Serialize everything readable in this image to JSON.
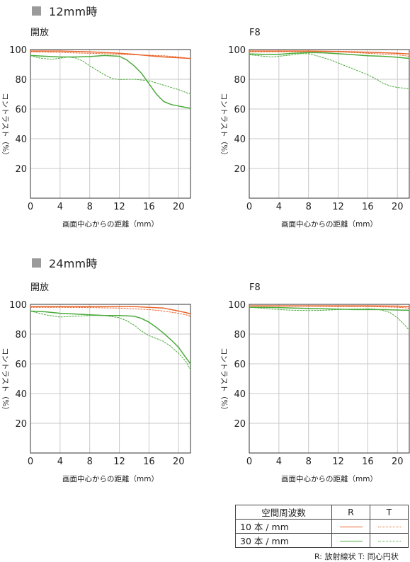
{
  "sections": [
    {
      "title": "12mm時"
    },
    {
      "title": "24mm時"
    }
  ],
  "colors": {
    "ten": "#e8642a",
    "thirty": "#4aaa3a",
    "grid": "#c8c8c8",
    "frame": "#333333"
  },
  "chart_data": [
    {
      "type": "line",
      "subtitle": "開放",
      "xlabel": "画面中心からの距離（mm）",
      "ylabel": "コントラスト（%）",
      "xlim": [
        0,
        21.6
      ],
      "ylim": [
        0,
        100
      ],
      "xticks": [
        0,
        4,
        8,
        12,
        16,
        20
      ],
      "yticks": [
        20,
        40,
        60,
        80,
        100
      ],
      "series": [
        {
          "kind": "10R",
          "x": [
            0,
            4,
            8,
            12,
            14,
            16,
            18,
            20,
            21.6
          ],
          "y": [
            99,
            99,
            98.5,
            97.5,
            96.8,
            95.8,
            95,
            94.5,
            94
          ]
        },
        {
          "kind": "10T",
          "x": [
            0,
            4,
            8,
            12,
            16,
            18,
            20,
            21.6
          ],
          "y": [
            98.5,
            98,
            97.5,
            96.8,
            96.2,
            95.8,
            95,
            94
          ]
        },
        {
          "kind": "30R",
          "x": [
            0,
            2,
            4,
            6,
            8,
            10,
            12,
            13,
            14,
            15,
            16,
            17,
            18,
            19,
            20,
            21,
            21.6
          ],
          "y": [
            96,
            95.5,
            95,
            95,
            95.3,
            96,
            95.5,
            93,
            89,
            84,
            77,
            70,
            65,
            63,
            62,
            61,
            60.5
          ]
        },
        {
          "kind": "30T",
          "x": [
            0,
            1,
            2,
            3,
            4,
            5,
            6,
            7,
            8,
            9,
            10,
            11,
            12,
            14,
            16,
            18,
            20,
            21.6
          ],
          "y": [
            96,
            94.5,
            93.8,
            93.5,
            94.2,
            95,
            94.5,
            92.5,
            89,
            86,
            83,
            80.5,
            79.8,
            80,
            79,
            76,
            73,
            70
          ]
        }
      ]
    },
    {
      "type": "line",
      "subtitle": "F8",
      "xlabel": "画面中心からの距離（mm）",
      "ylabel": "コントラスト（%）",
      "xlim": [
        0,
        21.6
      ],
      "ylim": [
        0,
        100
      ],
      "xticks": [
        0,
        4,
        8,
        12,
        16,
        20
      ],
      "yticks": [
        20,
        40,
        60,
        80,
        100
      ],
      "series": [
        {
          "kind": "10R",
          "x": [
            0,
            4,
            8,
            12,
            16,
            20,
            21.6
          ],
          "y": [
            99,
            99,
            99,
            98.7,
            98.2,
            97.5,
            97
          ]
        },
        {
          "kind": "10T",
          "x": [
            0,
            4,
            8,
            12,
            16,
            20,
            21.6
          ],
          "y": [
            98.5,
            98.5,
            98.6,
            98.5,
            97.5,
            96.5,
            95.5
          ]
        },
        {
          "kind": "30R",
          "x": [
            0,
            2,
            4,
            6,
            8,
            10,
            12,
            14,
            16,
            18,
            20,
            21.6
          ],
          "y": [
            97,
            96.8,
            96.8,
            97.5,
            98,
            97.8,
            97.2,
            96.5,
            95.8,
            95.5,
            94.8,
            94
          ]
        },
        {
          "kind": "30T",
          "x": [
            0,
            1,
            2,
            3,
            4,
            5,
            6,
            7,
            8,
            9,
            10,
            11,
            12,
            13,
            14,
            15,
            16,
            17,
            18,
            19,
            20,
            21,
            21.6
          ],
          "y": [
            96.5,
            96,
            95.5,
            95,
            95.5,
            96,
            96.5,
            97.3,
            97.2,
            96,
            94.5,
            93,
            91,
            89,
            87,
            85,
            83,
            80.5,
            77.5,
            75.5,
            74.5,
            74,
            73.5
          ]
        }
      ]
    },
    {
      "type": "line",
      "subtitle": "開放",
      "xlabel": "画面中心からの距離（mm）",
      "ylabel": "コントラスト（%）",
      "xlim": [
        0,
        21.6
      ],
      "ylim": [
        0,
        100
      ],
      "xticks": [
        0,
        4,
        8,
        12,
        16,
        20
      ],
      "yticks": [
        20,
        40,
        60,
        80,
        100
      ],
      "series": [
        {
          "kind": "10R",
          "x": [
            0,
            4,
            8,
            12,
            14,
            16,
            18,
            19,
            20,
            21,
            21.6
          ],
          "y": [
            98.5,
            98.5,
            98.5,
            98.5,
            98.5,
            98,
            97.5,
            96.5,
            95.5,
            94.5,
            93.5
          ]
        },
        {
          "kind": "10T",
          "x": [
            0,
            4,
            8,
            12,
            14,
            16,
            18,
            20,
            21,
            21.6
          ],
          "y": [
            98,
            98,
            97.8,
            97.5,
            97,
            96.5,
            95.5,
            94,
            93,
            92
          ]
        },
        {
          "kind": "30R",
          "x": [
            0,
            2,
            4,
            6,
            8,
            10,
            12,
            14,
            15,
            16,
            17,
            18,
            19,
            20,
            21,
            21.6
          ],
          "y": [
            95.5,
            95,
            94,
            93.5,
            93,
            92.5,
            92.5,
            92,
            90.5,
            88,
            84.5,
            80.5,
            76,
            71,
            64,
            60
          ]
        },
        {
          "kind": "30T",
          "x": [
            0,
            2,
            4,
            6,
            8,
            10,
            12,
            13,
            14,
            15,
            16,
            17,
            18,
            19,
            20,
            21,
            21.6
          ],
          "y": [
            95.5,
            93,
            91.5,
            92,
            92.5,
            92.5,
            91,
            89,
            86,
            82,
            79,
            77,
            75,
            71.5,
            67,
            61.5,
            56
          ]
        }
      ]
    },
    {
      "type": "line",
      "subtitle": "F8",
      "xlabel": "画面中心からの距離（mm）",
      "ylabel": "コントラスト（%）",
      "xlim": [
        0,
        21.6
      ],
      "ylim": [
        0,
        100
      ],
      "xticks": [
        0,
        4,
        8,
        12,
        16,
        20
      ],
      "yticks": [
        20,
        40,
        60,
        80,
        100
      ],
      "series": [
        {
          "kind": "10R",
          "x": [
            0,
            4,
            8,
            12,
            16,
            20,
            21.6
          ],
          "y": [
            99,
            99,
            99,
            99,
            99,
            98.8,
            98.5
          ]
        },
        {
          "kind": "10T",
          "x": [
            0,
            4,
            8,
            12,
            16,
            20,
            21.6
          ],
          "y": [
            99,
            98.8,
            98.7,
            98.5,
            98.5,
            98,
            97.5
          ]
        },
        {
          "kind": "30R",
          "x": [
            0,
            2,
            4,
            6,
            8,
            10,
            12,
            14,
            16,
            18,
            20,
            21.6
          ],
          "y": [
            98,
            98,
            97.8,
            97.5,
            97.3,
            97,
            96.8,
            96.5,
            96.5,
            96.5,
            96.2,
            96
          ]
        },
        {
          "kind": "30T",
          "x": [
            0,
            2,
            4,
            6,
            8,
            10,
            12,
            14,
            16,
            17,
            18,
            19,
            20,
            21,
            21.6
          ],
          "y": [
            98,
            97.3,
            96.5,
            96,
            95.8,
            96,
            96.5,
            96.8,
            97,
            96.8,
            96,
            94.5,
            91,
            86,
            82.5
          ]
        }
      ]
    }
  ],
  "legend": {
    "header": "空間周波数",
    "col_r": "R",
    "col_t": "T",
    "row_10": "10 本 / mm",
    "row_30": "30 本 / mm"
  },
  "footnote": "R: 放射線状 T: 同心円状"
}
